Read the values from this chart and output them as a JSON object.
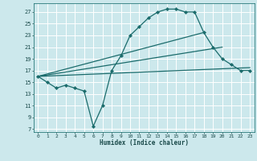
{
  "title": "",
  "xlabel": "Humidex (Indice chaleur)",
  "bg_color": "#cce8ec",
  "grid_color": "#ffffff",
  "line_color": "#1a6b6b",
  "xlim": [
    -0.5,
    23.5
  ],
  "ylim": [
    6.5,
    28.5
  ],
  "xticks": [
    0,
    1,
    2,
    3,
    4,
    5,
    6,
    7,
    8,
    9,
    10,
    11,
    12,
    13,
    14,
    15,
    16,
    17,
    18,
    19,
    20,
    21,
    22,
    23
  ],
  "yticks": [
    7,
    9,
    11,
    13,
    15,
    17,
    19,
    21,
    23,
    25,
    27
  ],
  "series": [
    [
      0,
      16
    ],
    [
      1,
      15
    ],
    [
      2,
      14
    ],
    [
      3,
      14.5
    ],
    [
      4,
      14
    ],
    [
      5,
      13.5
    ],
    [
      6,
      7.5
    ],
    [
      7,
      11
    ],
    [
      8,
      17
    ],
    [
      9,
      19.5
    ],
    [
      10,
      23
    ],
    [
      11,
      24.5
    ],
    [
      12,
      26
    ],
    [
      13,
      27
    ],
    [
      14,
      27.5
    ],
    [
      15,
      27.5
    ],
    [
      16,
      27
    ],
    [
      17,
      27
    ],
    [
      18,
      23.5
    ],
    [
      19,
      21
    ],
    [
      20,
      19
    ],
    [
      21,
      18
    ],
    [
      22,
      17
    ],
    [
      23,
      17
    ]
  ],
  "line2": [
    [
      0,
      16
    ],
    [
      23,
      17.5
    ]
  ],
  "line3": [
    [
      0,
      16
    ],
    [
      18,
      23.5
    ]
  ],
  "line4": [
    [
      0,
      16
    ],
    [
      20,
      21
    ]
  ]
}
